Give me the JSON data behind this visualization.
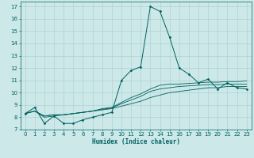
{
  "xlabel": "Humidex (Indice chaleur)",
  "background_color": "#cce8e8",
  "grid_color": "#aacccc",
  "line_color": "#006060",
  "xlim": [
    -0.5,
    23.5
  ],
  "ylim": [
    7,
    17.4
  ],
  "xticks": [
    0,
    1,
    2,
    3,
    4,
    5,
    6,
    7,
    8,
    9,
    10,
    11,
    12,
    13,
    14,
    15,
    16,
    17,
    18,
    19,
    20,
    21,
    22,
    23
  ],
  "yticks": [
    7,
    8,
    9,
    10,
    11,
    12,
    13,
    14,
    15,
    16,
    17
  ],
  "lines": [
    {
      "x": [
        0,
        1,
        2,
        3,
        4,
        5,
        6,
        7,
        8,
        9,
        10,
        11,
        12,
        13,
        14,
        15,
        16,
        17,
        18,
        19,
        20,
        21,
        22,
        23
      ],
      "y": [
        8.3,
        8.8,
        7.5,
        8.1,
        7.5,
        7.5,
        7.8,
        8.0,
        8.2,
        8.4,
        11.0,
        11.8,
        12.1,
        17.0,
        16.6,
        14.5,
        12.0,
        11.5,
        10.8,
        11.1,
        10.3,
        10.8,
        10.4,
        10.3
      ],
      "marker": true
    },
    {
      "x": [
        0,
        1,
        2,
        3,
        4,
        5,
        6,
        7,
        8,
        9,
        10,
        11,
        12,
        13,
        14,
        15,
        16,
        17,
        18,
        19,
        20,
        21,
        22,
        23
      ],
      "y": [
        8.3,
        8.5,
        8.0,
        8.1,
        8.2,
        8.3,
        8.4,
        8.5,
        8.6,
        8.7,
        8.9,
        9.1,
        9.3,
        9.6,
        9.8,
        10.0,
        10.1,
        10.2,
        10.3,
        10.4,
        10.4,
        10.5,
        10.5,
        10.5
      ],
      "marker": false
    },
    {
      "x": [
        0,
        1,
        2,
        3,
        4,
        5,
        6,
        7,
        8,
        9,
        10,
        11,
        12,
        13,
        14,
        15,
        16,
        17,
        18,
        19,
        20,
        21,
        22,
        23
      ],
      "y": [
        8.3,
        8.5,
        8.1,
        8.2,
        8.2,
        8.3,
        8.4,
        8.5,
        8.65,
        8.75,
        9.1,
        9.4,
        9.7,
        10.1,
        10.3,
        10.4,
        10.5,
        10.55,
        10.6,
        10.65,
        10.65,
        10.7,
        10.7,
        10.7
      ],
      "marker": false
    },
    {
      "x": [
        0,
        1,
        2,
        3,
        4,
        5,
        6,
        7,
        8,
        9,
        10,
        11,
        12,
        13,
        14,
        15,
        16,
        17,
        18,
        19,
        20,
        21,
        22,
        23
      ],
      "y": [
        8.3,
        8.5,
        8.1,
        8.2,
        8.2,
        8.3,
        8.4,
        8.5,
        8.7,
        8.8,
        9.2,
        9.6,
        9.9,
        10.3,
        10.6,
        10.7,
        10.7,
        10.75,
        10.8,
        10.85,
        10.85,
        10.9,
        10.9,
        10.95
      ],
      "marker": false
    }
  ]
}
